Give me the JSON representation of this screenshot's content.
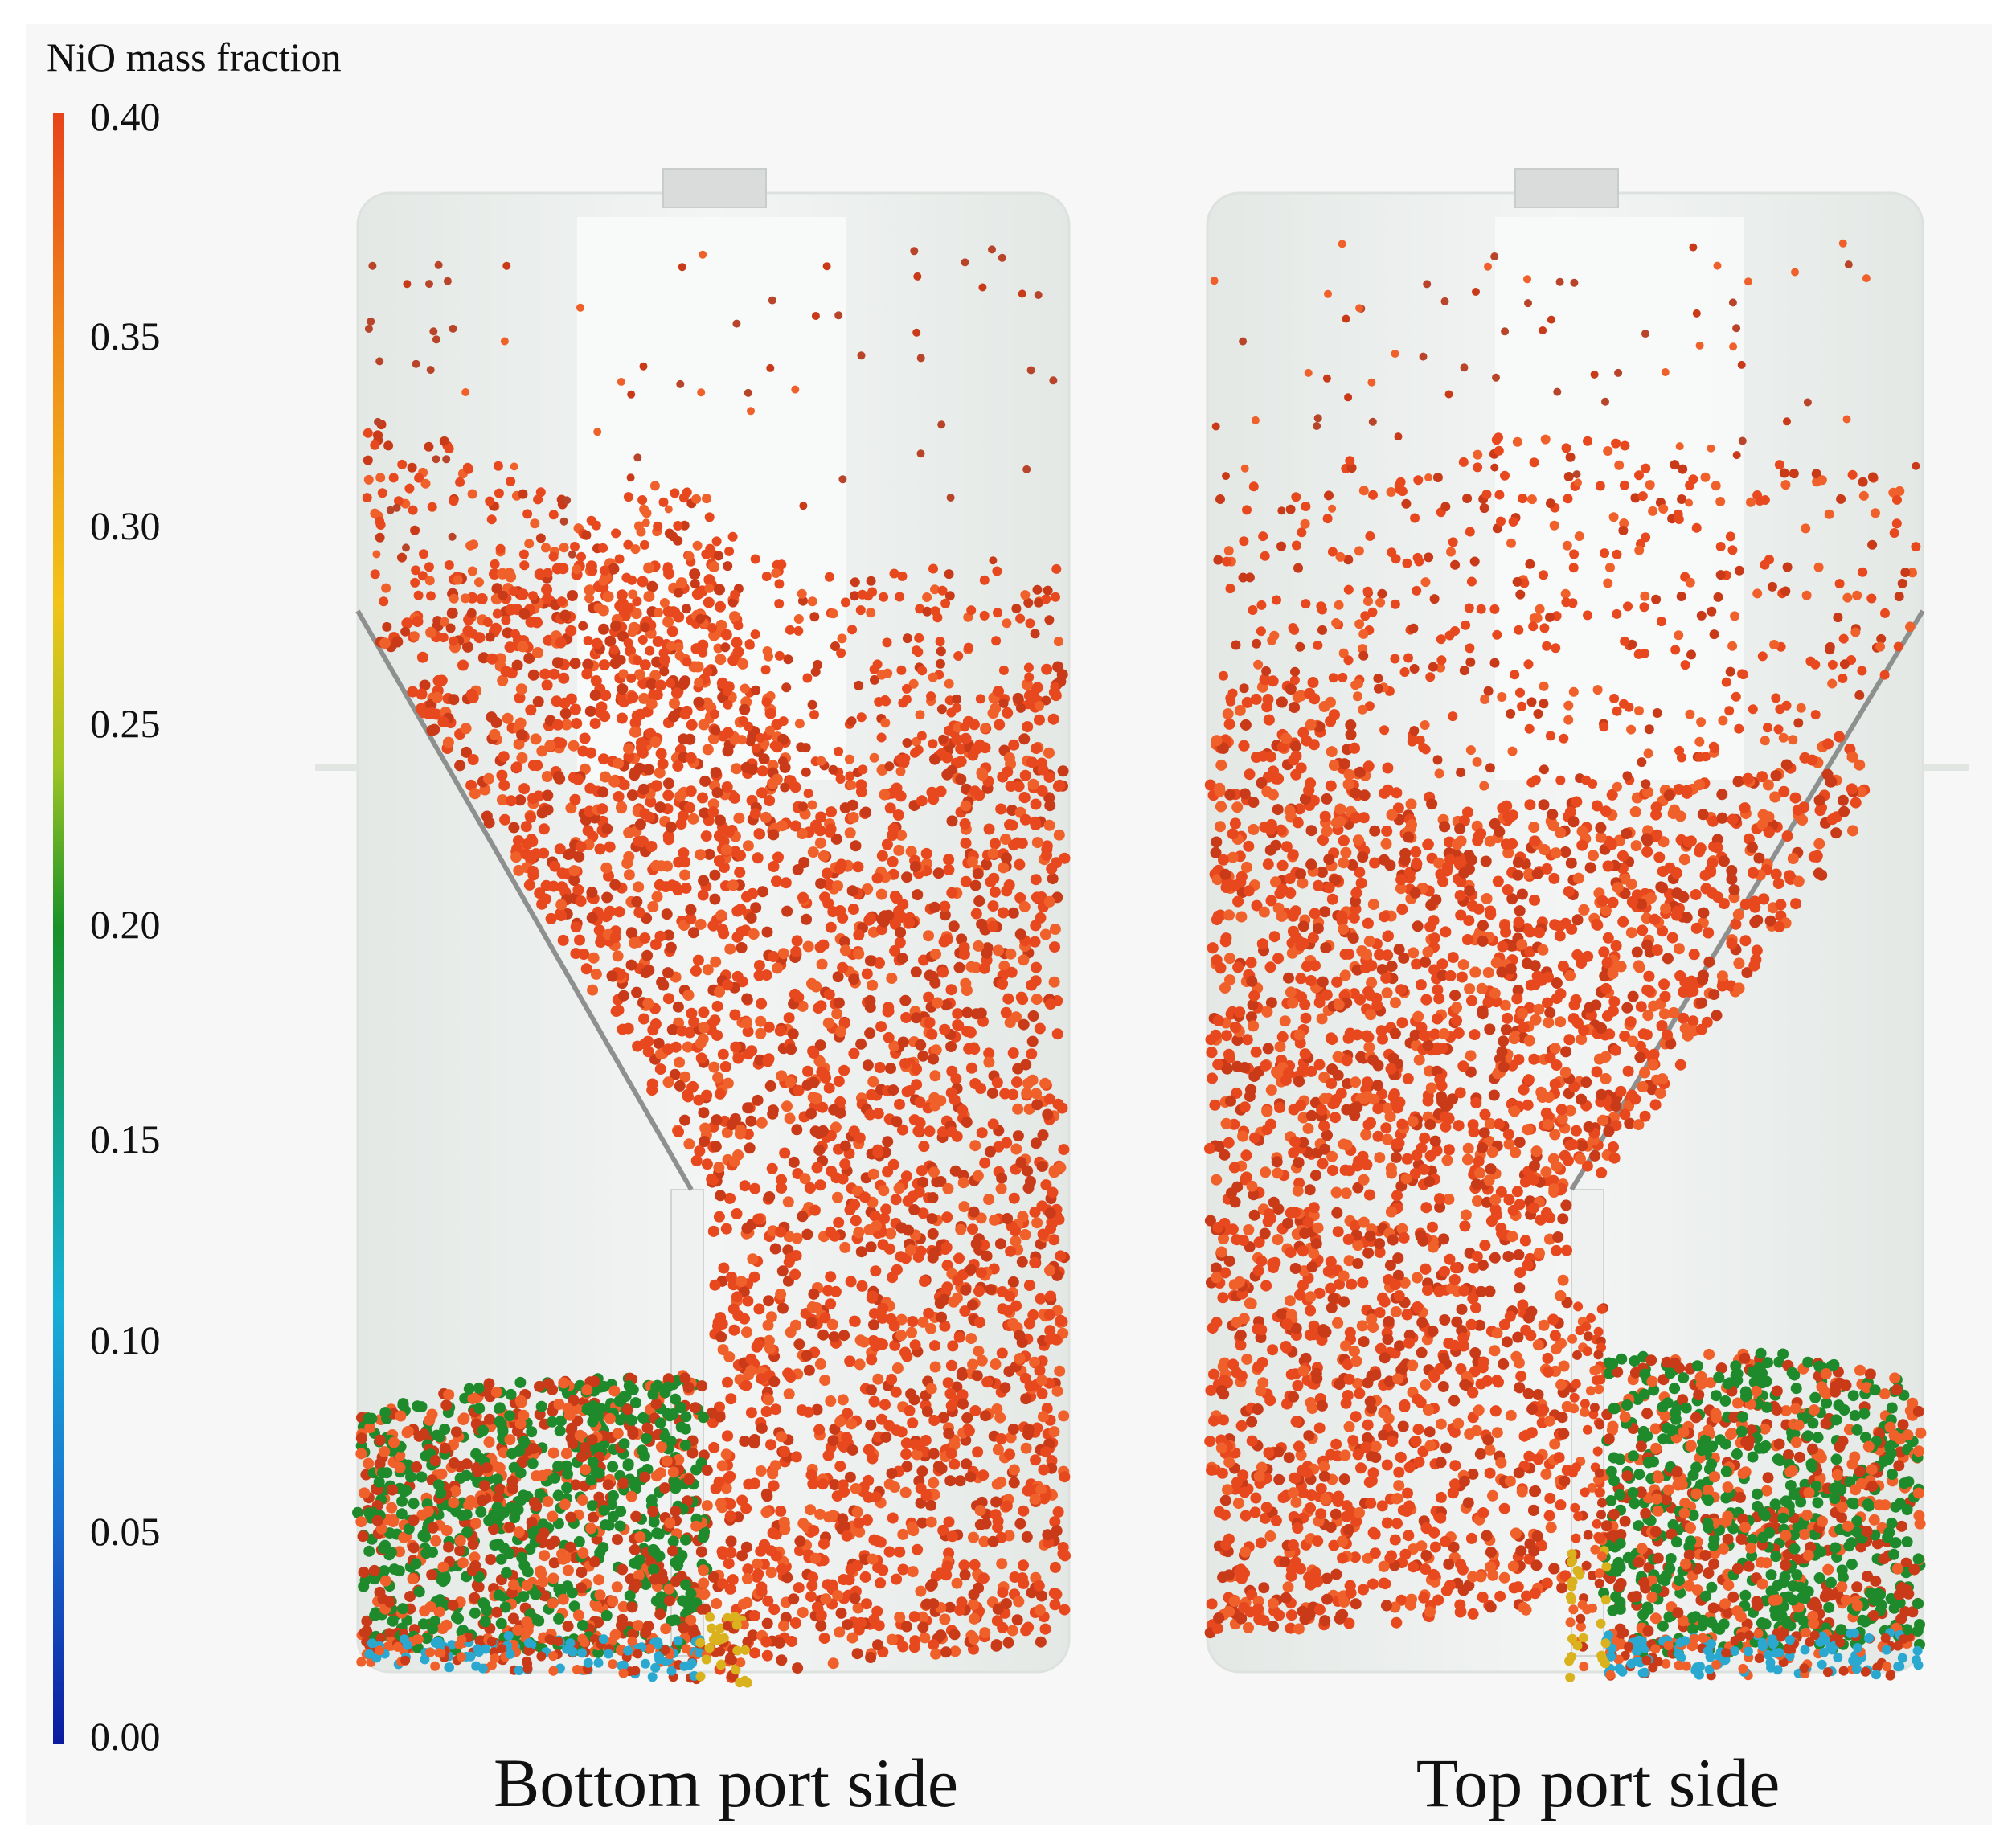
{
  "colorbar": {
    "title": "NiO mass fraction",
    "ticks": [
      "0.40",
      "0.35",
      "0.30",
      "0.25",
      "0.20",
      "0.15",
      "0.10",
      "0.05",
      "0.00"
    ],
    "tick_values": [
      0.4,
      0.35,
      0.3,
      0.25,
      0.2,
      0.15,
      0.1,
      0.05,
      0.0
    ],
    "min": 0.0,
    "max": 0.4,
    "colors": [
      "#0b1aa0",
      "#1a6fd0",
      "#17b0d6",
      "#12a48c",
      "#179128",
      "#9fc525",
      "#f2c319",
      "#f08a1a",
      "#e8431a"
    ]
  },
  "panels": [
    {
      "label": "Bottom port side"
    },
    {
      "label": "Top port side"
    }
  ],
  "colors": {
    "oxidized_particle": "#e8481e",
    "reduced_particle": "#1f8a2c",
    "low_particle": "#2aa8cf",
    "vessel": "#e8ecea",
    "vessel_edge": "#d6dbd8"
  }
}
